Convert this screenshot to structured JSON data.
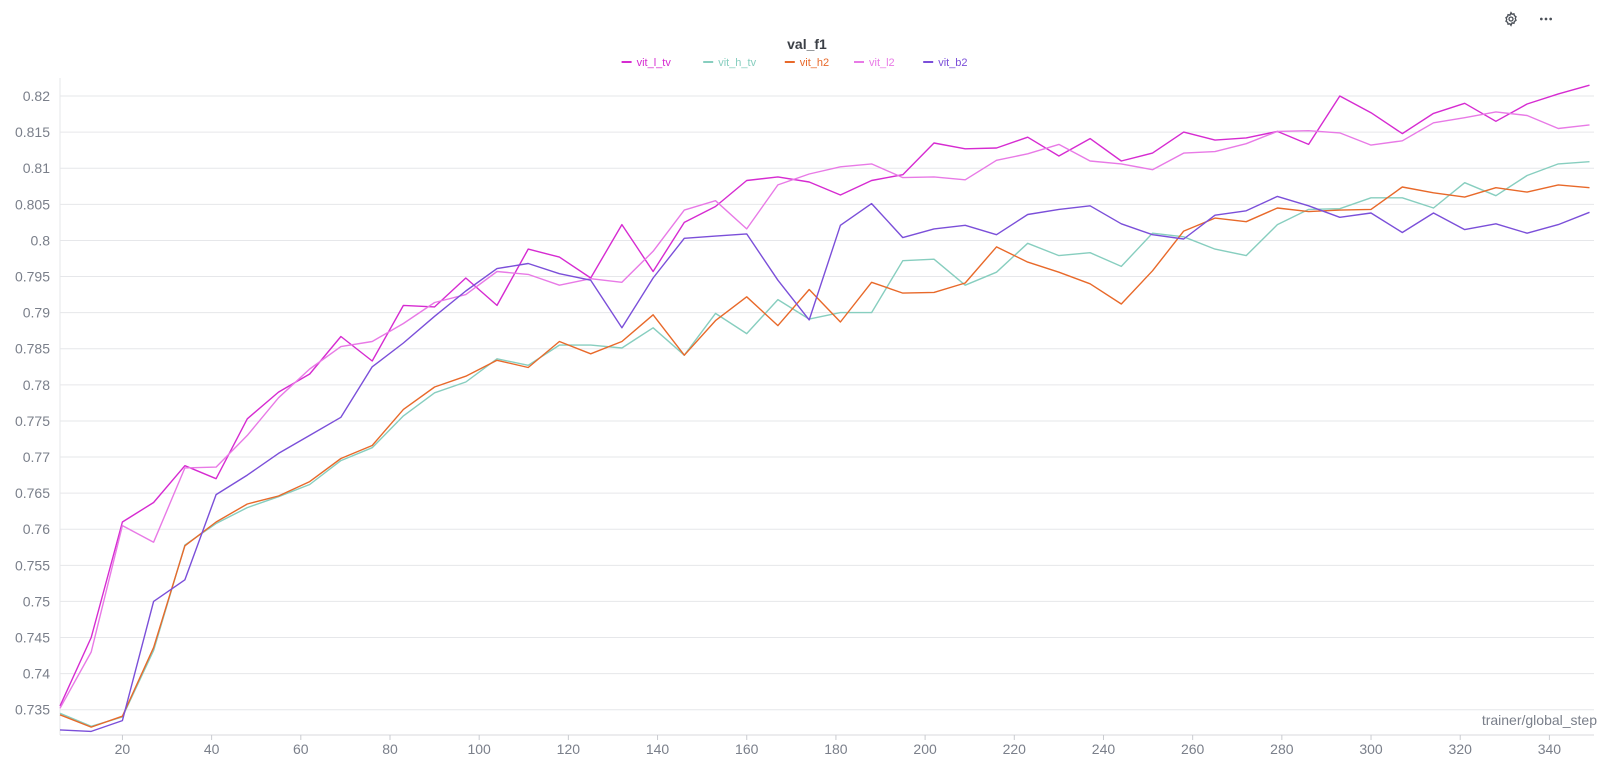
{
  "toolbar": {
    "settings_icon": "gear-icon",
    "more_icon": "more-horizontal-icon"
  },
  "chart_data": {
    "type": "line",
    "title": "val_f1",
    "xlabel": "trainer/global_step",
    "ylabel": "",
    "xlim": [
      6,
      350
    ],
    "ylim": [
      0.7315,
      0.8225
    ],
    "xticks": [
      20,
      40,
      60,
      80,
      100,
      120,
      140,
      160,
      180,
      200,
      220,
      240,
      260,
      280,
      300,
      320,
      340
    ],
    "yticks": [
      0.735,
      0.74,
      0.745,
      0.75,
      0.755,
      0.76,
      0.765,
      0.77,
      0.775,
      0.78,
      0.785,
      0.79,
      0.795,
      0.8,
      0.805,
      0.81,
      0.815,
      0.82
    ],
    "ytick_labels": [
      "0.735",
      "0.74",
      "0.745",
      "0.75",
      "0.755",
      "0.76",
      "0.765",
      "0.77",
      "0.775",
      "0.78",
      "0.785",
      "0.79",
      "0.795",
      "0.8",
      "0.805",
      "0.81",
      "0.815",
      "0.82"
    ],
    "grid": true,
    "legend_position": "top-center",
    "x": [
      6,
      13,
      20,
      27,
      34,
      41,
      48,
      55,
      62,
      69,
      76,
      83,
      90,
      97,
      104,
      111,
      118,
      125,
      132,
      139,
      146,
      153,
      160,
      167,
      174,
      181,
      188,
      195,
      202,
      209,
      216,
      223,
      230,
      237,
      244,
      251,
      258,
      265,
      272,
      279,
      286,
      293,
      300,
      307,
      314,
      321,
      328,
      335,
      342,
      349
    ],
    "series": [
      {
        "name": "vit_l_tv",
        "color": "#d62bd1",
        "values": [
          0.7355,
          0.745,
          0.761,
          0.7637,
          0.7688,
          0.767,
          0.7753,
          0.779,
          0.7815,
          0.7867,
          0.7833,
          0.791,
          0.7908,
          0.7948,
          0.791,
          0.7988,
          0.7977,
          0.7948,
          0.8022,
          0.7957,
          0.8025,
          0.8047,
          0.8083,
          0.8088,
          0.8081,
          0.8063,
          0.8083,
          0.8091,
          0.8135,
          0.8127,
          0.8128,
          0.8143,
          0.8117,
          0.8141,
          0.811,
          0.8121,
          0.815,
          0.8139,
          0.8142,
          0.8151,
          0.8133,
          0.82,
          0.8177,
          0.8148,
          0.8176,
          0.819,
          0.8165,
          0.8189,
          0.8203,
          0.8215
        ]
      },
      {
        "name": "vit_h_tv",
        "color": "#87cebf",
        "values": [
          0.7345,
          0.7327,
          0.734,
          0.7432,
          0.7578,
          0.7608,
          0.763,
          0.7645,
          0.7662,
          0.7695,
          0.7713,
          0.7757,
          0.7789,
          0.7804,
          0.7836,
          0.7827,
          0.7855,
          0.7855,
          0.7851,
          0.7879,
          0.7841,
          0.7899,
          0.7871,
          0.7918,
          0.7891,
          0.79,
          0.79,
          0.7972,
          0.7974,
          0.7938,
          0.7956,
          0.7996,
          0.7979,
          0.7983,
          0.7964,
          0.801,
          0.8005,
          0.7988,
          0.7979,
          0.8022,
          0.8043,
          0.8044,
          0.8059,
          0.8059,
          0.8045,
          0.808,
          0.8062,
          0.809,
          0.8106,
          0.8109
        ]
      },
      {
        "name": "vit_h2",
        "color": "#e8692a",
        "values": [
          0.7343,
          0.7326,
          0.7341,
          0.7436,
          0.7577,
          0.761,
          0.7635,
          0.7646,
          0.7666,
          0.7698,
          0.7716,
          0.7766,
          0.7797,
          0.7812,
          0.7834,
          0.7824,
          0.786,
          0.7843,
          0.786,
          0.7897,
          0.7841,
          0.7889,
          0.7922,
          0.7882,
          0.7932,
          0.7887,
          0.7942,
          0.7927,
          0.7928,
          0.7941,
          0.7991,
          0.797,
          0.7956,
          0.794,
          0.7912,
          0.7958,
          0.8013,
          0.8031,
          0.8026,
          0.8045,
          0.804,
          0.8042,
          0.8043,
          0.8074,
          0.8066,
          0.806,
          0.8073,
          0.8067,
          0.8077,
          0.8073
        ]
      },
      {
        "name": "vit_l2",
        "color": "#e87ae6",
        "values": [
          0.7352,
          0.743,
          0.7605,
          0.7582,
          0.7685,
          0.7686,
          0.773,
          0.7782,
          0.7822,
          0.7853,
          0.786,
          0.7885,
          0.7914,
          0.7925,
          0.7957,
          0.7953,
          0.7938,
          0.7947,
          0.7942,
          0.7985,
          0.8042,
          0.8055,
          0.8016,
          0.8077,
          0.8092,
          0.8102,
          0.8106,
          0.8087,
          0.8088,
          0.8084,
          0.8111,
          0.812,
          0.8133,
          0.811,
          0.8106,
          0.8098,
          0.8121,
          0.8123,
          0.8134,
          0.8151,
          0.8152,
          0.8149,
          0.8132,
          0.8138,
          0.8163,
          0.817,
          0.8178,
          0.8173,
          0.8155,
          0.816
        ]
      },
      {
        "name": "vit_b2",
        "color": "#7b4fd9",
        "values": [
          0.7322,
          0.732,
          0.7335,
          0.75,
          0.753,
          0.7648,
          0.7675,
          0.7705,
          0.773,
          0.7755,
          0.7825,
          0.7858,
          0.7895,
          0.793,
          0.7961,
          0.7968,
          0.7954,
          0.7945,
          0.7879,
          0.7948,
          0.8003,
          0.8006,
          0.8009,
          0.7945,
          0.789,
          0.8021,
          0.8051,
          0.8004,
          0.8016,
          0.8021,
          0.8008,
          0.8036,
          0.8043,
          0.8048,
          0.8023,
          0.8008,
          0.8002,
          0.8035,
          0.8041,
          0.8061,
          0.8048,
          0.8032,
          0.8038,
          0.8011,
          0.8038,
          0.8015,
          0.8023,
          0.801,
          0.8022,
          0.8039
        ]
      }
    ]
  }
}
